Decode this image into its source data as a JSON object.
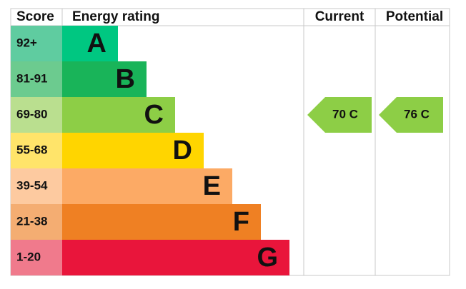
{
  "header": {
    "score": "Score",
    "rating": "Energy rating",
    "current": "Current",
    "potential": "Potential"
  },
  "bands": [
    {
      "score": "92+",
      "letter": "A",
      "color": "#00c781",
      "score_color": "#5fcca0"
    },
    {
      "score": "81-91",
      "letter": "B",
      "color": "#19b459",
      "score_color": "#6ccb8f"
    },
    {
      "score": "69-80",
      "letter": "C",
      "color": "#8dce46",
      "score_color": "#badf8f"
    },
    {
      "score": "55-68",
      "letter": "D",
      "color": "#ffd500",
      "score_color": "#ffe46a"
    },
    {
      "score": "39-54",
      "letter": "E",
      "color": "#fcaa65",
      "score_color": "#fdcaa0"
    },
    {
      "score": "21-38",
      "letter": "F",
      "color": "#ef8023",
      "score_color": "#f4ad72"
    },
    {
      "score": "1-20",
      "letter": "G",
      "color": "#e9153b",
      "score_color": "#f07a8c"
    }
  ],
  "current": {
    "label": "70 C",
    "color": "#8dce46"
  },
  "potential": {
    "label": "76 C",
    "color": "#8dce46"
  }
}
